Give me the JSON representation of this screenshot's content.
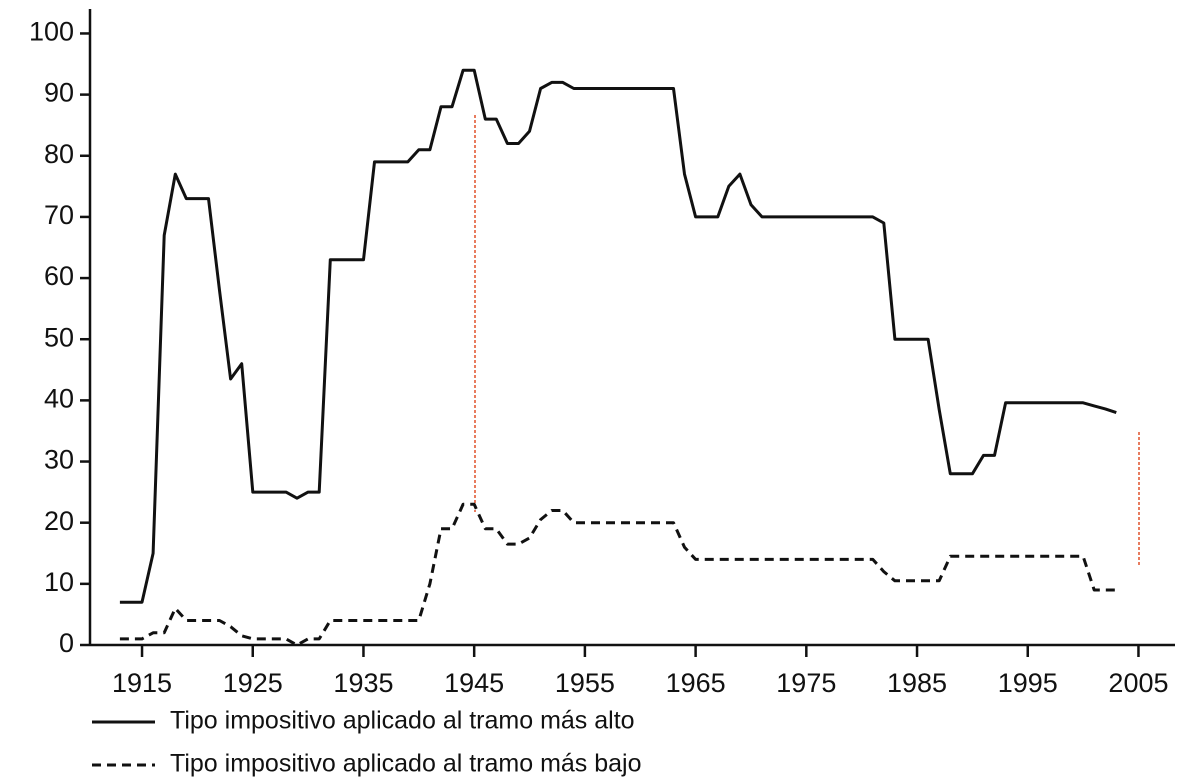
{
  "chart_data": {
    "type": "line",
    "x": [
      1913,
      1914,
      1915,
      1916,
      1917,
      1918,
      1919,
      1920,
      1921,
      1922,
      1923,
      1924,
      1925,
      1926,
      1927,
      1928,
      1929,
      1930,
      1931,
      1932,
      1933,
      1934,
      1935,
      1936,
      1937,
      1938,
      1939,
      1940,
      1941,
      1942,
      1943,
      1944,
      1945,
      1946,
      1947,
      1948,
      1949,
      1950,
      1951,
      1952,
      1953,
      1954,
      1955,
      1956,
      1957,
      1958,
      1959,
      1960,
      1961,
      1962,
      1963,
      1964,
      1965,
      1966,
      1967,
      1968,
      1969,
      1970,
      1971,
      1972,
      1973,
      1974,
      1975,
      1976,
      1977,
      1978,
      1979,
      1980,
      1981,
      1982,
      1983,
      1984,
      1985,
      1986,
      1987,
      1988,
      1989,
      1990,
      1991,
      1992,
      1993,
      1994,
      1995,
      1996,
      1997,
      1998,
      1999,
      2000,
      2001,
      2002,
      2003
    ],
    "series": [
      {
        "name": "Tipo impositivo aplicado al tramo más alto",
        "color": "#111111",
        "dash": "solid",
        "values": [
          7,
          7,
          7,
          15,
          67,
          77,
          73,
          73,
          73,
          58,
          43.5,
          46,
          25,
          25,
          25,
          25,
          24,
          25,
          25,
          63,
          63,
          63,
          63,
          79,
          79,
          79,
          79,
          81,
          81,
          88,
          88,
          94,
          94,
          86,
          86,
          82,
          82,
          84,
          91,
          92,
          92,
          91,
          91,
          91,
          91,
          91,
          91,
          91,
          91,
          91,
          91,
          77,
          70,
          70,
          70,
          75,
          77,
          72,
          70,
          70,
          70,
          70,
          70,
          70,
          70,
          70,
          70,
          70,
          70,
          69,
          50,
          50,
          50,
          50,
          38.5,
          28,
          28,
          28,
          31,
          31,
          39.6,
          39.6,
          39.6,
          39.6,
          39.6,
          39.6,
          39.6,
          39.6,
          39.1,
          38.6,
          38
        ]
      },
      {
        "name": "Tipo impositivo aplicado al tramo más bajo",
        "color": "#111111",
        "dash": "dashed",
        "values": [
          1,
          1,
          1,
          2,
          2,
          6,
          4,
          4,
          4,
          4,
          3,
          1.5,
          1,
          1,
          1,
          1,
          0,
          1,
          1,
          4,
          4,
          4,
          4,
          4,
          4,
          4,
          4,
          4,
          10,
          19,
          19,
          23,
          23,
          19,
          19,
          16.5,
          16.5,
          17.5,
          20.5,
          22,
          22,
          20,
          20,
          20,
          20,
          20,
          20,
          20,
          20,
          20,
          20,
          16,
          14,
          14,
          14,
          14,
          14,
          14,
          14,
          14,
          14,
          14,
          14,
          14,
          14,
          14,
          14,
          14,
          14,
          12,
          10.5,
          10.5,
          10.5,
          10.5,
          10.5,
          14.5,
          14.5,
          14.5,
          14.5,
          14.5,
          14.5,
          14.5,
          14.5,
          14.5,
          14.5,
          14.5,
          14.5,
          14.5,
          9,
          9,
          9
        ]
      }
    ],
    "xlim": [
      1910.3,
      2008.3
    ],
    "xticks": [
      1915,
      1925,
      1935,
      1945,
      1955,
      1965,
      1975,
      1985,
      1995,
      2005
    ],
    "ylim": [
      0,
      104
    ],
    "yticks": [
      0,
      10,
      20,
      30,
      40,
      50,
      60,
      70,
      80,
      90,
      100
    ],
    "legend": "bottom-left"
  }
}
